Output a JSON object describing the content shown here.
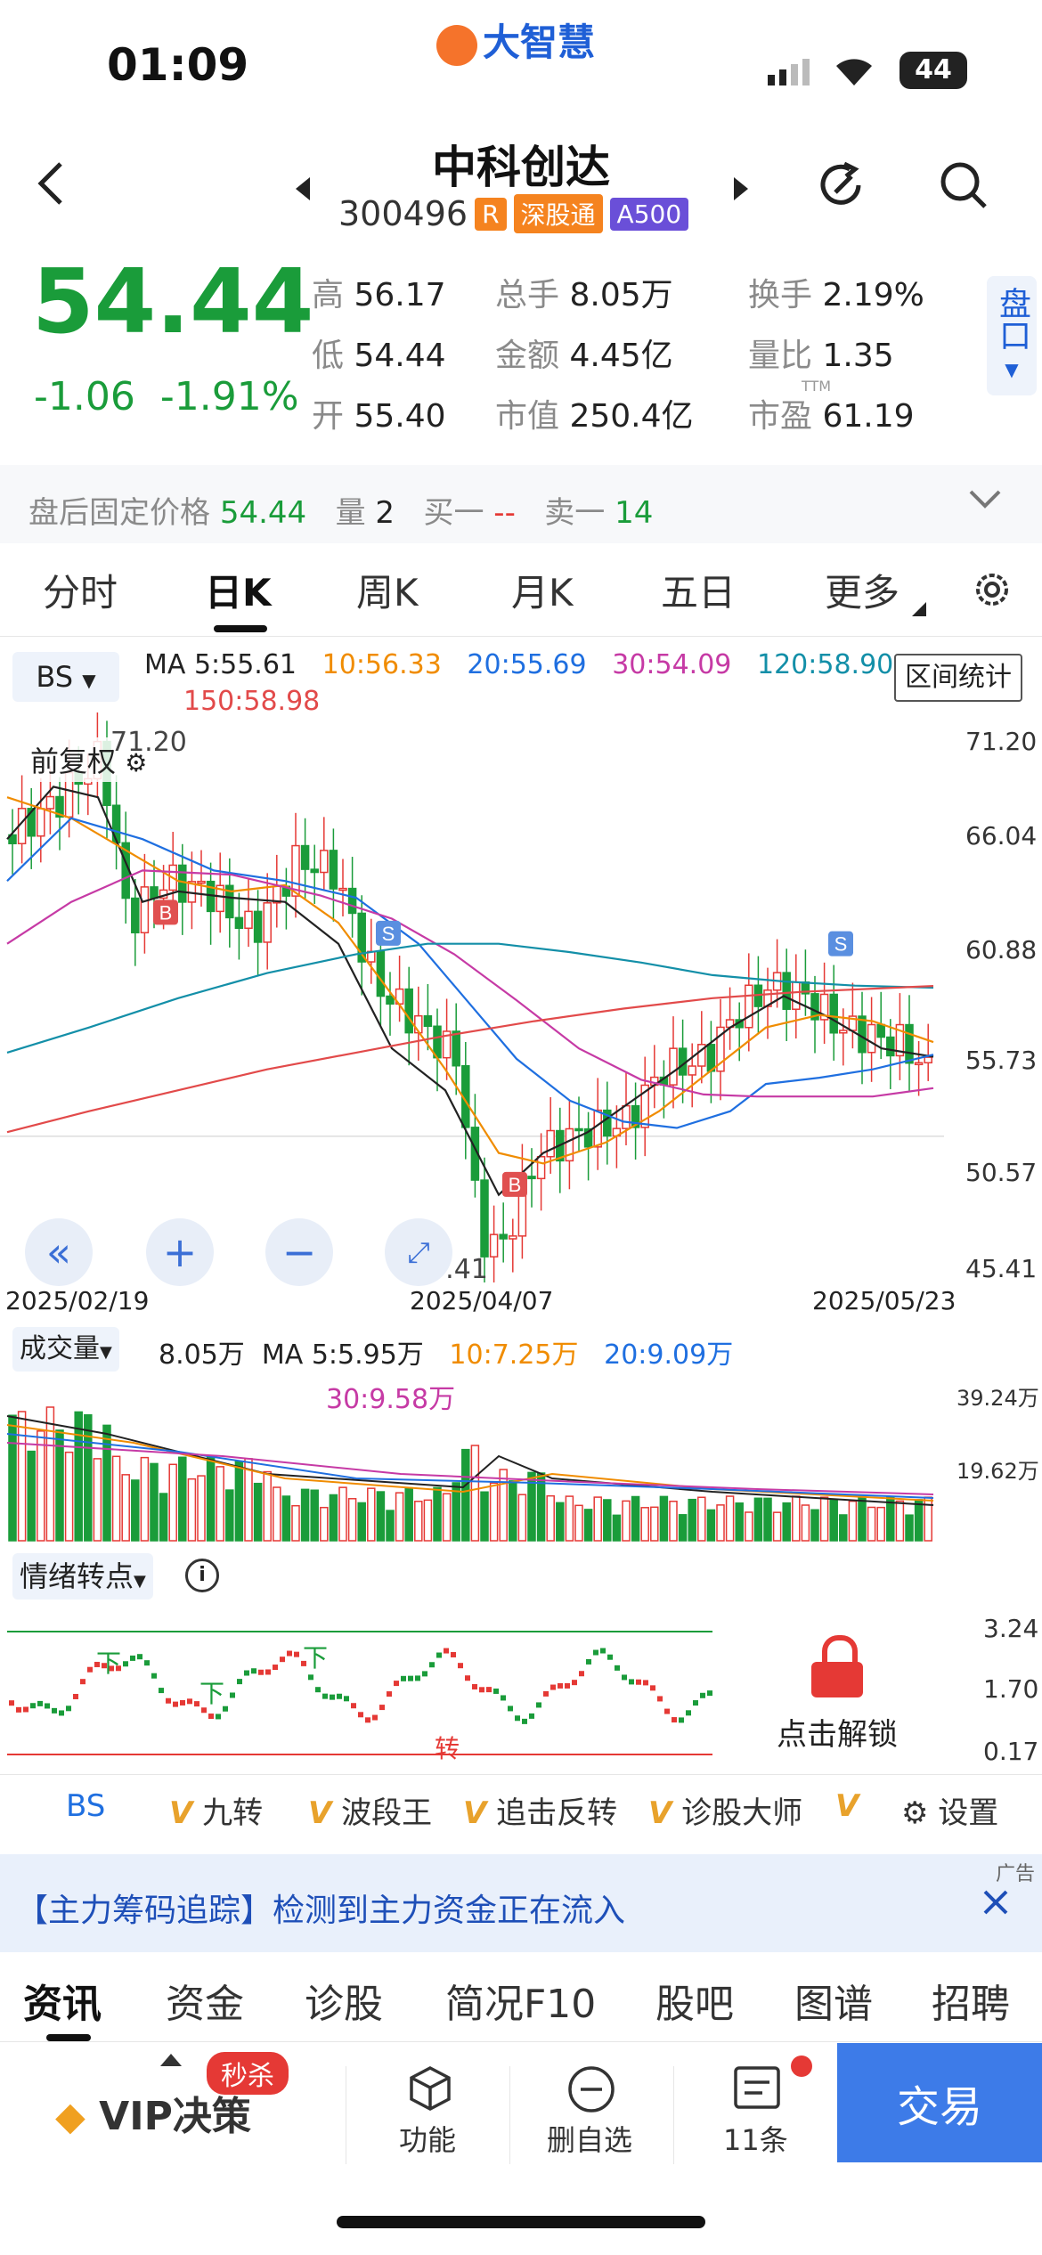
{
  "status": {
    "time": "01:09",
    "battery": "44",
    "app_brand": "大智慧"
  },
  "header": {
    "name": "中科创达",
    "code": "300496",
    "tags": [
      {
        "text": "R",
        "color": "#f5831f"
      },
      {
        "text": "深股通",
        "color": "#f5831f"
      },
      {
        "text": "A500",
        "color": "#6a4fd8"
      }
    ]
  },
  "quote": {
    "price": "54.44",
    "change": "-1.06",
    "change_pct": "-1.91%",
    "high_label": "高",
    "high": "56.17",
    "low_label": "低",
    "low": "54.44",
    "open_label": "开",
    "open": "55.40",
    "vol_label": "总手",
    "vol": "8.05万",
    "amount_label": "金额",
    "amount": "4.45亿",
    "mcap_label": "市值",
    "mcap": "250.4亿",
    "turnover_label": "换手",
    "turnover": "2.19%",
    "vr_label": "量比",
    "vr": "1.35",
    "pe_label": "市盈",
    "pe_sup": "TTM",
    "pe": "61.19",
    "side_btn": "盘口"
  },
  "after_hours": {
    "label": "盘后固定价格",
    "price": "54.44",
    "vol_label": "量",
    "vol": "2",
    "bid_label": "买一",
    "bid": "--",
    "ask_label": "卖一",
    "ask": "14"
  },
  "tabs": [
    "分时",
    "日K",
    "周K",
    "月K",
    "五日",
    "更多"
  ],
  "kchart": {
    "indicator": "BS",
    "ma_labels": [
      "MA 5:55.61",
      "10:56.33",
      "20:55.69",
      "30:54.09",
      "120:58.90",
      "150:58.98"
    ],
    "range_btn": "区间统计",
    "adjust": "前复权",
    "high_mark": "71.20",
    "low_mark": "45.41",
    "y_ticks": [
      "71.20",
      "66.04",
      "60.88",
      "55.73",
      "50.57",
      "45.41"
    ],
    "dates": [
      "2025/02/19",
      "2025/04/07",
      "2025/05/23"
    ],
    "signals": [
      "B",
      "B",
      "S",
      "S"
    ]
  },
  "volume": {
    "label": "成交量",
    "values": [
      "8.05万",
      "MA 5:5.95万",
      "10:7.25万",
      "20:9.09万",
      "30:9.58万"
    ],
    "y_ticks": [
      "39.24万",
      "19.62万"
    ]
  },
  "sentiment": {
    "label": "情绪转点",
    "y_ticks": [
      "3.24",
      "1.70",
      "0.17"
    ],
    "marks": [
      "下",
      "下",
      "下",
      "转"
    ],
    "lock_text": "点击解锁"
  },
  "indicator_bar": {
    "items": [
      "BS",
      "九转",
      "波段王",
      "追击反转",
      "诊股大师"
    ],
    "settings": "设置"
  },
  "ad": {
    "tag": "广告",
    "text": "【主力筹码追踪】检测到主力资金正在流入"
  },
  "bottom_tabs": [
    "资讯",
    "资金",
    "诊股",
    "简况F10",
    "股吧",
    "图谱",
    "招聘"
  ],
  "toolbar": {
    "vip": "VIP决策",
    "vip_badge": "秒杀",
    "func": "功能",
    "remove": "删自选",
    "msgs": "11条",
    "trade": "交易"
  },
  "chart_data": {
    "type": "line",
    "title": "",
    "x": [
      "2025/02/19",
      "2025/04/07",
      "2025/05/23"
    ],
    "close": [
      67.5,
      47.0,
      54.44
    ],
    "ylim": [
      45.41,
      71.2
    ],
    "series": [
      {
        "name": "MA 5",
        "last": 55.61
      },
      {
        "name": "MA 10",
        "last": 56.33
      },
      {
        "name": "MA 20",
        "last": 55.69
      },
      {
        "name": "MA 30",
        "last": 54.09
      },
      {
        "name": "MA 120",
        "last": 58.9
      },
      {
        "name": "MA 150",
        "last": 58.98
      }
    ]
  }
}
